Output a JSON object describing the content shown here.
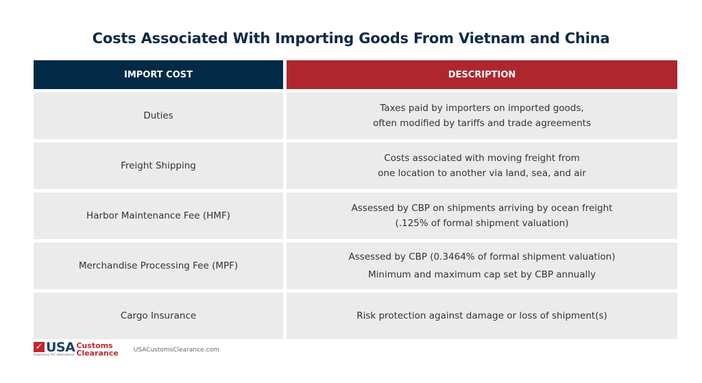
{
  "title": "Costs Associated With Importing Goods From Vietnam and China",
  "table": {
    "headers": [
      "IMPORT COST",
      "DESCRIPTION"
    ],
    "header_colors": [
      "#002a46",
      "#b0262e"
    ],
    "rows": [
      {
        "cost": "Duties",
        "desc": [
          "Taxes paid by importers on imported goods,",
          "often modified by tariffs and trade agreements"
        ]
      },
      {
        "cost": "Freight Shipping",
        "desc": [
          "Costs associated with moving freight from",
          "one location to another via land, sea, and air"
        ]
      },
      {
        "cost": "Harbor Maintenance Fee (HMF)",
        "desc": [
          "Assessed by CBP on shipments arriving by ocean freight",
          "(.125% of formal shipment valuation)"
        ]
      },
      {
        "cost": "Merchandise Processing Fee (MPF)",
        "desc": [
          "Assessed by CBP (0.3464% of formal shipment valuation)",
          "Minimum and maximum cap set by CBP annually"
        ]
      },
      {
        "cost": "Cargo Insurance",
        "desc": [
          "Risk protection against damage or loss of shipment(s)"
        ]
      }
    ]
  },
  "footer": {
    "logo_check": "✓",
    "logo_usa": "USA",
    "logo_customs": "Customs",
    "logo_clearance": "Clearance",
    "logo_powered": "Powered by AFC International",
    "url": "USACustomsClearance.com"
  }
}
